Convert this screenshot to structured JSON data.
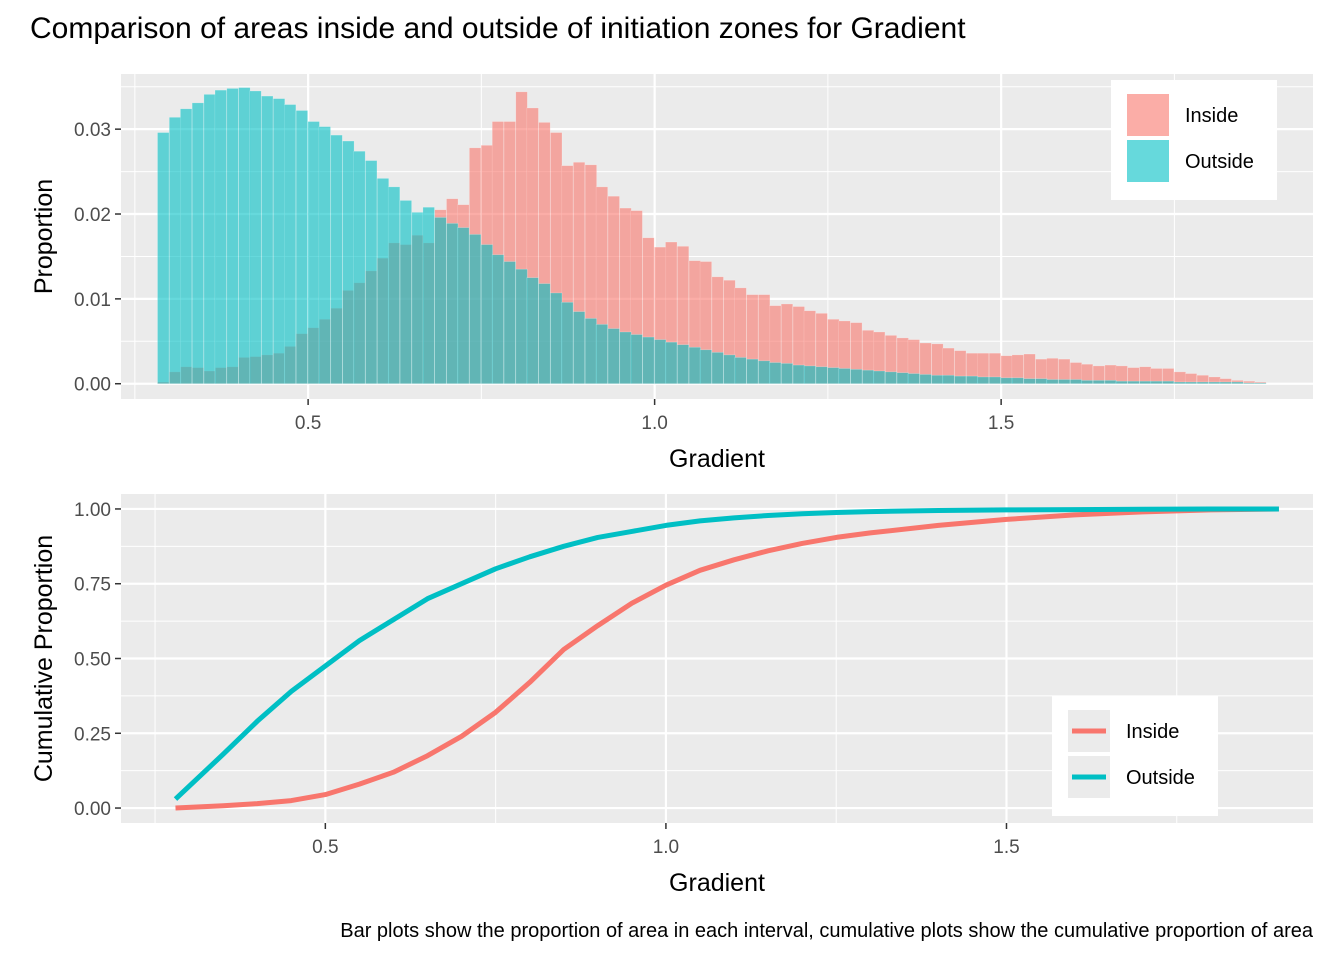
{
  "title": "Comparison of areas inside and outside of initiation zones for Gradient",
  "caption": "Bar plots show the proportion of area in each interval, cumulative plots show the cumulative proportion of area",
  "colors": {
    "inside": "#F8766D",
    "outside": "#00BFC4",
    "panel_bg": "#EBEBEB",
    "grid": "#FFFFFF"
  },
  "chart_data": [
    {
      "type": "bar",
      "bar_mode": "overlay",
      "bin_width": 0.0167,
      "xlabel": "Gradient",
      "ylabel": "Proportion",
      "xlim": [
        0.23,
        1.95
      ],
      "ylim": [
        -0.0018,
        0.0365
      ],
      "x_ticks": [
        "0.5",
        "1.0",
        "1.5"
      ],
      "y_ticks": [
        "0.00",
        "0.01",
        "0.02",
        "0.03"
      ],
      "legend": [
        "Inside",
        "Outside"
      ],
      "legend_position": "top-right",
      "grid": true,
      "x": [
        0.291,
        0.308,
        0.324,
        0.341,
        0.358,
        0.374,
        0.391,
        0.408,
        0.424,
        0.441,
        0.458,
        0.474,
        0.491,
        0.508,
        0.524,
        0.541,
        0.558,
        0.574,
        0.591,
        0.608,
        0.624,
        0.641,
        0.658,
        0.674,
        0.691,
        0.708,
        0.724,
        0.741,
        0.758,
        0.774,
        0.791,
        0.808,
        0.824,
        0.841,
        0.858,
        0.874,
        0.891,
        0.908,
        0.924,
        0.941,
        0.958,
        0.974,
        0.991,
        1.008,
        1.024,
        1.041,
        1.058,
        1.074,
        1.091,
        1.108,
        1.124,
        1.141,
        1.158,
        1.174,
        1.191,
        1.208,
        1.224,
        1.241,
        1.258,
        1.274,
        1.291,
        1.308,
        1.324,
        1.341,
        1.358,
        1.374,
        1.391,
        1.408,
        1.424,
        1.441,
        1.458,
        1.474,
        1.491,
        1.508,
        1.524,
        1.541,
        1.558,
        1.574,
        1.591,
        1.608,
        1.624,
        1.641,
        1.658,
        1.674,
        1.691,
        1.708,
        1.724,
        1.741,
        1.758,
        1.774,
        1.791,
        1.808,
        1.824,
        1.841,
        1.858,
        1.874
      ],
      "series": [
        {
          "name": "Inside",
          "values": [
            0.0002,
            0.0014,
            0.002,
            0.0019,
            0.0015,
            0.0019,
            0.002,
            0.0031,
            0.0032,
            0.0034,
            0.0036,
            0.0044,
            0.0059,
            0.0066,
            0.0076,
            0.0089,
            0.011,
            0.0119,
            0.0133,
            0.0148,
            0.0166,
            0.0164,
            0.0175,
            0.0166,
            0.0205,
            0.0218,
            0.0211,
            0.0278,
            0.0281,
            0.0309,
            0.0309,
            0.0344,
            0.0325,
            0.0308,
            0.0296,
            0.0257,
            0.0261,
            0.0258,
            0.0232,
            0.0221,
            0.0207,
            0.0204,
            0.0172,
            0.0161,
            0.0167,
            0.0162,
            0.0145,
            0.0144,
            0.0126,
            0.0122,
            0.0113,
            0.0105,
            0.0105,
            0.0092,
            0.0094,
            0.0091,
            0.0086,
            0.0083,
            0.0076,
            0.0074,
            0.0072,
            0.0063,
            0.0061,
            0.0057,
            0.0054,
            0.0052,
            0.0048,
            0.0047,
            0.0042,
            0.0039,
            0.0036,
            0.0036,
            0.0036,
            0.0033,
            0.0034,
            0.0035,
            0.0029,
            0.003,
            0.0029,
            0.0025,
            0.0023,
            0.0021,
            0.0022,
            0.0021,
            0.0019,
            0.002,
            0.0018,
            0.0018,
            0.0014,
            0.0012,
            0.001,
            0.0008,
            0.0006,
            0.0004,
            0.0003,
            0.0002
          ]
        },
        {
          "name": "Outside",
          "values": [
            0.0296,
            0.0314,
            0.0324,
            0.0331,
            0.0341,
            0.0346,
            0.0348,
            0.0349,
            0.0345,
            0.0339,
            0.0336,
            0.0329,
            0.0322,
            0.0309,
            0.0303,
            0.0293,
            0.0286,
            0.0274,
            0.0263,
            0.0242,
            0.0232,
            0.0216,
            0.0202,
            0.0208,
            0.0196,
            0.0189,
            0.0184,
            0.0176,
            0.0164,
            0.0152,
            0.0144,
            0.0135,
            0.0125,
            0.0118,
            0.0107,
            0.0096,
            0.0085,
            0.0077,
            0.007,
            0.0065,
            0.0061,
            0.0058,
            0.0055,
            0.0052,
            0.0049,
            0.0046,
            0.0043,
            0.004,
            0.0037,
            0.0034,
            0.0031,
            0.0029,
            0.0027,
            0.0025,
            0.0024,
            0.0022,
            0.0021,
            0.002,
            0.0019,
            0.0018,
            0.0017,
            0.0016,
            0.0015,
            0.0014,
            0.0013,
            0.0012,
            0.0011,
            0.001,
            0.001,
            0.0009,
            0.0009,
            0.0008,
            0.0008,
            0.0007,
            0.0007,
            0.0006,
            0.0006,
            0.0005,
            0.0005,
            0.0005,
            0.0004,
            0.0004,
            0.0004,
            0.0003,
            0.0003,
            0.0003,
            0.0003,
            0.0003,
            0.0002,
            0.0002,
            0.0002,
            0.0002,
            0.0002,
            0.0002,
            0.0001,
            0.0001
          ]
        }
      ]
    },
    {
      "type": "line",
      "xlabel": "Gradient",
      "ylabel": "Cumulative Proportion",
      "xlim": [
        0.2,
        1.95
      ],
      "ylim": [
        -0.05,
        1.05
      ],
      "x_ticks": [
        "0.5",
        "1.0",
        "1.5"
      ],
      "y_ticks": [
        "0.00",
        "0.25",
        "0.50",
        "0.75",
        "1.00"
      ],
      "legend": [
        "Inside",
        "Outside"
      ],
      "legend_position": "bottom-right",
      "grid": true,
      "series": [
        {
          "name": "Inside",
          "x": [
            0.28,
            0.35,
            0.4,
            0.45,
            0.5,
            0.55,
            0.6,
            0.65,
            0.7,
            0.75,
            0.8,
            0.85,
            0.9,
            0.95,
            1.0,
            1.05,
            1.1,
            1.15,
            1.2,
            1.25,
            1.3,
            1.4,
            1.5,
            1.6,
            1.7,
            1.8,
            1.9
          ],
          "y": [
            0.0,
            0.008,
            0.015,
            0.025,
            0.045,
            0.08,
            0.12,
            0.175,
            0.24,
            0.32,
            0.42,
            0.53,
            0.61,
            0.685,
            0.745,
            0.795,
            0.83,
            0.86,
            0.885,
            0.905,
            0.92,
            0.945,
            0.965,
            0.98,
            0.99,
            0.997,
            1.0
          ]
        },
        {
          "name": "Outside",
          "x": [
            0.28,
            0.35,
            0.4,
            0.45,
            0.5,
            0.55,
            0.6,
            0.65,
            0.7,
            0.75,
            0.8,
            0.85,
            0.9,
            0.95,
            1.0,
            1.05,
            1.1,
            1.15,
            1.2,
            1.25,
            1.3,
            1.4,
            1.5,
            1.6,
            1.7,
            1.8,
            1.9
          ],
          "y": [
            0.03,
            0.18,
            0.29,
            0.39,
            0.475,
            0.56,
            0.63,
            0.7,
            0.75,
            0.8,
            0.84,
            0.875,
            0.905,
            0.925,
            0.945,
            0.96,
            0.97,
            0.978,
            0.984,
            0.988,
            0.991,
            0.995,
            0.997,
            0.998,
            0.999,
            1.0,
            1.0
          ]
        }
      ]
    }
  ]
}
